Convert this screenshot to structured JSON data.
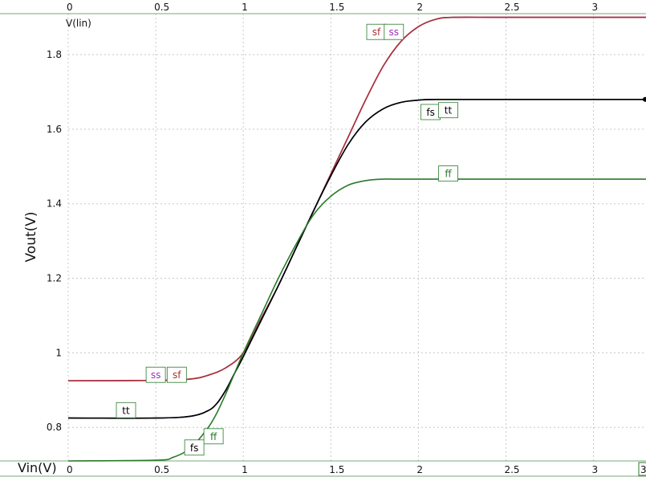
{
  "chart_data": {
    "type": "line",
    "xlabel": "Vin(V)",
    "ylabel": "Vout(V)",
    "y_scale_label": "V(lin)",
    "xlim": [
      0,
      3.3
    ],
    "ylim": [
      0.71,
      1.91
    ],
    "x_ticks": [
      "0",
      "0.5",
      "1",
      "1.5",
      "2",
      "2.5",
      "3"
    ],
    "y_ticks": [
      "0.8",
      "1",
      "1.2",
      "1.4",
      "1.6",
      "1.8"
    ],
    "x_axis_end_label": "3",
    "grid": true,
    "series": [
      {
        "name": "ss",
        "color": "#9b30b8",
        "x": [
          0,
          0.5,
          0.7,
          0.8,
          0.9,
          1.0,
          1.1,
          1.2,
          1.3,
          1.4,
          1.5,
          1.6,
          1.7,
          1.8,
          1.9,
          2.0,
          2.1,
          2.2,
          2.5,
          3.3
        ],
        "y": [
          0.925,
          0.926,
          0.93,
          0.94,
          0.96,
          1.0,
          1.09,
          1.18,
          1.28,
          1.38,
          1.48,
          1.58,
          1.68,
          1.77,
          1.835,
          1.875,
          1.895,
          1.9,
          1.9,
          1.9
        ]
      },
      {
        "name": "sf",
        "color": "#a83232",
        "x": [
          0,
          0.5,
          0.7,
          0.8,
          0.9,
          1.0,
          1.1,
          1.2,
          1.3,
          1.4,
          1.5,
          1.6,
          1.7,
          1.8,
          1.9,
          2.0,
          2.1,
          2.2,
          2.5,
          3.3
        ],
        "y": [
          0.925,
          0.926,
          0.93,
          0.94,
          0.96,
          1.0,
          1.09,
          1.18,
          1.28,
          1.38,
          1.48,
          1.58,
          1.68,
          1.77,
          1.835,
          1.875,
          1.895,
          1.9,
          1.9,
          1.9
        ]
      },
      {
        "name": "tt",
        "color": "#1c2a7a",
        "x": [
          0,
          0.5,
          0.7,
          0.8,
          0.85,
          0.9,
          0.95,
          1.0,
          1.1,
          1.2,
          1.3,
          1.4,
          1.5,
          1.6,
          1.7,
          1.8,
          1.9,
          2.0,
          2.1,
          2.5,
          3.3
        ],
        "y": [
          0.825,
          0.825,
          0.83,
          0.845,
          0.865,
          0.9,
          0.945,
          0.99,
          1.085,
          1.18,
          1.28,
          1.38,
          1.475,
          1.56,
          1.62,
          1.655,
          1.672,
          1.678,
          1.68,
          1.68,
          1.68
        ]
      },
      {
        "name": "fs",
        "color": "#000000",
        "x": [
          0,
          0.5,
          0.7,
          0.8,
          0.85,
          0.9,
          0.95,
          1.0,
          1.1,
          1.2,
          1.3,
          1.4,
          1.5,
          1.6,
          1.7,
          1.8,
          1.9,
          2.0,
          2.1,
          2.5,
          3.3
        ],
        "y": [
          0.825,
          0.825,
          0.83,
          0.845,
          0.865,
          0.9,
          0.945,
          0.99,
          1.085,
          1.18,
          1.28,
          1.38,
          1.475,
          1.56,
          1.62,
          1.655,
          1.672,
          1.678,
          1.68,
          1.68,
          1.68
        ]
      },
      {
        "name": "ff",
        "color": "#2a7a2a",
        "x": [
          0,
          0.5,
          0.6,
          0.7,
          0.8,
          0.85,
          0.9,
          0.95,
          1.0,
          1.1,
          1.2,
          1.3,
          1.4,
          1.5,
          1.6,
          1.7,
          1.8,
          2.0,
          3.3
        ],
        "y": [
          0.71,
          0.712,
          0.72,
          0.745,
          0.8,
          0.84,
          0.89,
          0.945,
          1.0,
          1.1,
          1.2,
          1.29,
          1.37,
          1.42,
          1.45,
          1.462,
          1.466,
          1.466,
          1.466
        ]
      }
    ],
    "annotations": [
      {
        "text": "sf",
        "color": "#a83232",
        "x": 1.76,
        "y": 1.86
      },
      {
        "text": "ss",
        "color": "#9b30b8",
        "x": 1.86,
        "y": 1.86
      },
      {
        "text": "fs",
        "color": "#000000",
        "x": 2.07,
        "y": 1.645
      },
      {
        "text": "tt",
        "color": "#000000",
        "x": 2.17,
        "y": 1.65
      },
      {
        "text": "ff",
        "color": "#2a7a2a",
        "x": 2.17,
        "y": 1.48
      },
      {
        "text": "ss",
        "color": "#9b30b8",
        "x": 0.5,
        "y": 0.94
      },
      {
        "text": "sf",
        "color": "#a83232",
        "x": 0.62,
        "y": 0.94
      },
      {
        "text": "tt",
        "color": "#000000",
        "x": 0.33,
        "y": 0.845
      },
      {
        "text": "ff",
        "color": "#2a7a2a",
        "x": 0.83,
        "y": 0.775
      },
      {
        "text": "fs",
        "color": "#000000",
        "x": 0.72,
        "y": 0.745
      }
    ]
  }
}
